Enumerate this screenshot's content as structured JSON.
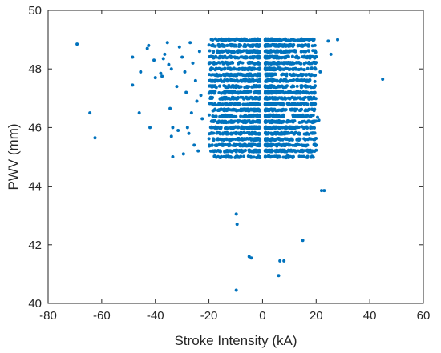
{
  "chart_data": {
    "type": "scatter",
    "title": "",
    "xlabel": "Stroke Intensity (kA)",
    "ylabel": "PWV (mm)",
    "xlim": [
      -80,
      60
    ],
    "ylim": [
      40,
      50
    ],
    "xticks": [
      "-80",
      "-60",
      "-40",
      "-20",
      "0",
      "20",
      "40",
      "60"
    ],
    "yticks": [
      "40",
      "42",
      "44",
      "46",
      "48",
      "50"
    ],
    "grid": false,
    "legend": "none",
    "marker_color": "#0072BD",
    "dense_clusters": [
      {
        "x_range": [
          -20,
          -1
        ],
        "y_range": [
          45.0,
          49.1
        ]
      },
      {
        "x_range": [
          1,
          20
        ],
        "y_range": [
          45.0,
          49.1
        ]
      }
    ],
    "points": [
      [
        -69.2,
        48.85
      ],
      [
        -64.4,
        46.5
      ],
      [
        -62.5,
        45.65
      ],
      [
        -48.5,
        48.4
      ],
      [
        -48.5,
        47.45
      ],
      [
        -46.0,
        46.5
      ],
      [
        -45.5,
        47.9
      ],
      [
        -43.0,
        48.7
      ],
      [
        -42.5,
        48.8
      ],
      [
        -42.0,
        46.0
      ],
      [
        -40.5,
        48.3
      ],
      [
        -40.0,
        47.7
      ],
      [
        -38.0,
        47.85
      ],
      [
        -37.5,
        47.75
      ],
      [
        -37.0,
        48.35
      ],
      [
        -36.5,
        48.5
      ],
      [
        -35.5,
        48.9
      ],
      [
        -35.0,
        48.15
      ],
      [
        -34.5,
        46.65
      ],
      [
        -34.0,
        48.0
      ],
      [
        -34.0,
        45.7
      ],
      [
        -33.5,
        46.0
      ],
      [
        -33.5,
        45.0
      ],
      [
        -32.0,
        47.4
      ],
      [
        -31.5,
        45.9
      ],
      [
        -31.0,
        48.75
      ],
      [
        -30.0,
        48.4
      ],
      [
        -29.5,
        45.1
      ],
      [
        -29.0,
        47.9
      ],
      [
        -28.5,
        47.2
      ],
      [
        -28.0,
        46.0
      ],
      [
        -27.5,
        45.8
      ],
      [
        -27.0,
        48.9
      ],
      [
        -26.5,
        46.5
      ],
      [
        -26.0,
        48.2
      ],
      [
        -25.5,
        45.4
      ],
      [
        -25.0,
        47.6
      ],
      [
        -24.5,
        46.9
      ],
      [
        -24.0,
        45.2
      ],
      [
        -23.5,
        48.6
      ],
      [
        -23.0,
        47.1
      ],
      [
        -22.5,
        46.3
      ],
      [
        20.5,
        46.35
      ],
      [
        21.0,
        46.25
      ],
      [
        20.0,
        45.4
      ],
      [
        21.5,
        47.9
      ],
      [
        22.0,
        43.85
      ],
      [
        23.0,
        43.85
      ],
      [
        24.5,
        48.95
      ],
      [
        25.5,
        48.5
      ],
      [
        28.0,
        49.0
      ],
      [
        44.8,
        47.65
      ],
      [
        -9.8,
        43.05
      ],
      [
        -9.5,
        42.7
      ],
      [
        -5.0,
        41.6
      ],
      [
        -4.2,
        41.55
      ],
      [
        -9.8,
        40.45
      ],
      [
        6.0,
        40.95
      ],
      [
        6.5,
        41.45
      ],
      [
        8.0,
        41.45
      ],
      [
        15.0,
        42.15
      ]
    ]
  }
}
